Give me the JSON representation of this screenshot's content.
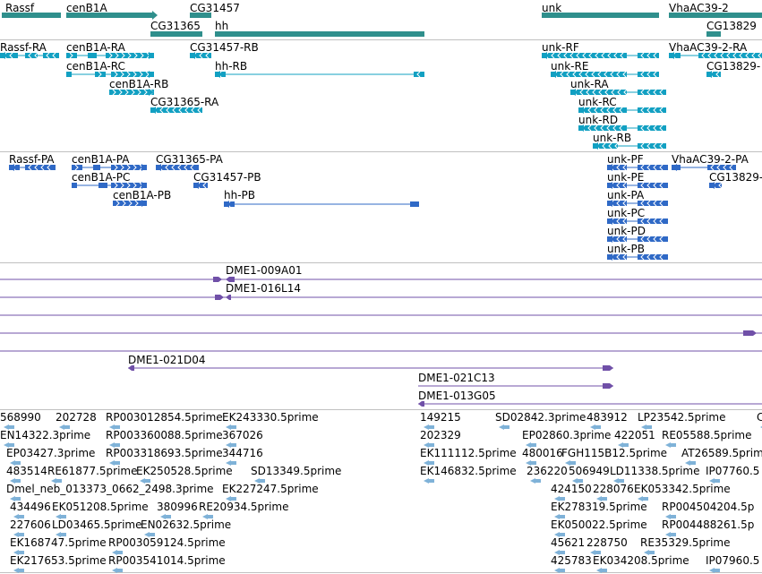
{
  "colors": {
    "gene": "#2f8f8c",
    "transcript": "#12a0c2",
    "protein": "#2f69c6",
    "clone": "#7050a8",
    "est": "#7fb2d8"
  },
  "tracks": {
    "genes": [
      {
        "label": "Rassf",
        "lx": 6,
        "ly": 2,
        "bars": [
          [
            2,
            68
          ]
        ]
      },
      {
        "label": "cenB1A",
        "lx": 74,
        "ly": 2,
        "bars": [
          [
            74,
            170
          ]
        ],
        "arrow": "right"
      },
      {
        "label": "CG31457",
        "lx": 212,
        "ly": 2,
        "bars": [
          [
            212,
            236
          ]
        ]
      },
      {
        "label": "CG31365",
        "lx": 168,
        "ly": 22,
        "bars": [
          [
            168,
            226
          ]
        ],
        "row": 2
      },
      {
        "label": "hh",
        "lx": 240,
        "ly": 22,
        "bars": [
          [
            240,
            474
          ]
        ],
        "row": 2
      },
      {
        "label": "unk",
        "lx": 605,
        "ly": 2,
        "bars": [
          [
            605,
            736
          ]
        ]
      },
      {
        "label": "VhaAC39-2",
        "lx": 747,
        "ly": 2,
        "bars": [
          [
            747,
            851
          ]
        ]
      },
      {
        "label": "CG13829",
        "lx": 789,
        "ly": 22,
        "bars": [
          [
            789,
            805
          ]
        ],
        "row": 2
      }
    ],
    "transcripts": [
      {
        "label": "Rassf-RA",
        "lx": 0,
        "ly": 46,
        "y": 62,
        "x1": 0,
        "x2": 66,
        "dir": "left",
        "blocks": [
          [
            0,
            20
          ],
          [
            28,
            42
          ],
          [
            48,
            66
          ]
        ]
      },
      {
        "label": "cenB1A-RA",
        "lx": 74,
        "ly": 46,
        "y": 62,
        "x1": 74,
        "x2": 172,
        "dir": "right",
        "blocks": [
          [
            74,
            86
          ],
          [
            98,
            108
          ],
          [
            118,
            172
          ]
        ]
      },
      {
        "label": "CG31457-RB",
        "lx": 212,
        "ly": 46,
        "y": 62,
        "x1": 212,
        "x2": 236,
        "dir": "left",
        "blocks": [
          [
            212,
            236
          ]
        ]
      },
      {
        "label": "cenB1A-RC",
        "lx": 74,
        "ly": 67,
        "y": 83,
        "x1": 74,
        "x2": 172,
        "dir": "right",
        "blocks": [
          [
            74,
            80
          ],
          [
            106,
            118
          ],
          [
            124,
            172
          ]
        ]
      },
      {
        "label": "hh-RB",
        "lx": 240,
        "ly": 67,
        "y": 83,
        "x1": 240,
        "x2": 474,
        "dir": "left",
        "blocks": [
          [
            240,
            252
          ],
          [
            462,
            474
          ]
        ]
      },
      {
        "label": "cenB1A-RB",
        "lx": 122,
        "ly": 87,
        "y": 103,
        "x1": 122,
        "x2": 172,
        "dir": "right",
        "blocks": [
          [
            122,
            172
          ]
        ]
      },
      {
        "label": "CG31365-RA",
        "lx": 168,
        "ly": 107,
        "y": 123,
        "x1": 168,
        "x2": 226,
        "dir": "left",
        "blocks": [
          [
            168,
            226
          ]
        ]
      },
      {
        "label": "unk-RF",
        "lx": 605,
        "ly": 46,
        "y": 62,
        "x1": 605,
        "x2": 736,
        "dir": "left",
        "blocks": [
          [
            605,
            700
          ],
          [
            712,
            736
          ]
        ]
      },
      {
        "label": "VhaAC39-2-RA",
        "lx": 747,
        "ly": 46,
        "y": 62,
        "x1": 747,
        "x2": 851,
        "dir": "left",
        "blocks": [
          [
            747,
            760
          ],
          [
            780,
            851
          ]
        ]
      },
      {
        "label": "unk-RE",
        "lx": 615,
        "ly": 67,
        "y": 83,
        "x1": 615,
        "x2": 736,
        "dir": "left",
        "blocks": [
          [
            615,
            700
          ],
          [
            712,
            736
          ]
        ]
      },
      {
        "label": "CG13829-",
        "lx": 789,
        "ly": 67,
        "y": 83,
        "x1": 789,
        "x2": 805,
        "dir": "left",
        "blocks": [
          [
            789,
            805
          ]
        ]
      },
      {
        "label": "unk-RA",
        "lx": 637,
        "ly": 87,
        "y": 103,
        "x1": 637,
        "x2": 744,
        "dir": "left",
        "blocks": [
          [
            637,
            700
          ],
          [
            712,
            744
          ]
        ]
      },
      {
        "label": "unk-RC",
        "lx": 646,
        "ly": 107,
        "y": 123,
        "x1": 646,
        "x2": 744,
        "dir": "left",
        "blocks": [
          [
            646,
            700
          ],
          [
            712,
            744
          ]
        ]
      },
      {
        "label": "unk-RD",
        "lx": 646,
        "ly": 127,
        "y": 143,
        "x1": 646,
        "x2": 744,
        "dir": "left",
        "blocks": [
          [
            646,
            700
          ],
          [
            712,
            744
          ]
        ]
      },
      {
        "label": "unk-RB",
        "lx": 662,
        "ly": 147,
        "y": 163,
        "x1": 662,
        "x2": 744,
        "dir": "left",
        "blocks": [
          [
            662,
            690
          ],
          [
            712,
            744
          ]
        ]
      }
    ],
    "proteins": [
      {
        "label": "Rassf-PA",
        "lx": 10,
        "ly": 171,
        "y": 187,
        "x1": 10,
        "x2": 62,
        "dir": "left",
        "blocks": [
          [
            10,
            22
          ],
          [
            28,
            62
          ]
        ]
      },
      {
        "label": "cenB1A-PA",
        "lx": 80,
        "ly": 171,
        "y": 187,
        "x1": 80,
        "x2": 164,
        "dir": "right",
        "blocks": [
          [
            80,
            92
          ],
          [
            104,
            112
          ],
          [
            124,
            164
          ]
        ]
      },
      {
        "label": "CG31365-PA",
        "lx": 174,
        "ly": 171,
        "y": 187,
        "x1": 174,
        "x2": 222,
        "dir": "left",
        "blocks": [
          [
            174,
            222
          ]
        ]
      },
      {
        "label": "cenB1A-PC",
        "lx": 80,
        "ly": 191,
        "y": 207,
        "x1": 80,
        "x2": 164,
        "dir": "right",
        "blocks": [
          [
            80,
            86
          ],
          [
            110,
            120
          ],
          [
            124,
            164
          ]
        ]
      },
      {
        "label": "CG31457-PB",
        "lx": 216,
        "ly": 191,
        "y": 207,
        "x1": 216,
        "x2": 232,
        "dir": "left",
        "blocks": [
          [
            216,
            232
          ]
        ]
      },
      {
        "label": "cenB1A-PB",
        "lx": 126,
        "ly": 211,
        "y": 227,
        "x1": 126,
        "x2": 164,
        "dir": "right",
        "blocks": [
          [
            126,
            164
          ]
        ]
      },
      {
        "label": "hh-PB",
        "lx": 250,
        "ly": 211,
        "y": 228,
        "x1": 250,
        "x2": 468,
        "dir": "left",
        "blocks": [
          [
            250,
            262
          ],
          [
            458,
            468
          ]
        ]
      },
      {
        "label": "unk-PF",
        "lx": 678,
        "ly": 171,
        "y": 187,
        "x1": 678,
        "x2": 746,
        "dir": "left",
        "blocks": [
          [
            678,
            700
          ],
          [
            712,
            746
          ]
        ]
      },
      {
        "label": "VhaAC39-2-PA",
        "lx": 750,
        "ly": 171,
        "y": 187,
        "x1": 750,
        "x2": 822,
        "dir": "left",
        "blocks": [
          [
            750,
            760
          ],
          [
            790,
            822
          ]
        ]
      },
      {
        "label": "unk-PE",
        "lx": 678,
        "ly": 191,
        "y": 207,
        "x1": 678,
        "x2": 746,
        "dir": "left",
        "blocks": [
          [
            678,
            700
          ],
          [
            712,
            746
          ]
        ]
      },
      {
        "label": "CG13829-",
        "lx": 792,
        "ly": 191,
        "y": 207,
        "x1": 792,
        "x2": 806,
        "dir": "left",
        "blocks": [
          [
            792,
            806
          ]
        ]
      },
      {
        "label": "unk-PA",
        "lx": 678,
        "ly": 211,
        "y": 227,
        "x1": 678,
        "x2": 746,
        "dir": "left",
        "blocks": [
          [
            678,
            700
          ],
          [
            712,
            746
          ]
        ]
      },
      {
        "label": "unk-PC",
        "lx": 678,
        "ly": 231,
        "y": 247,
        "x1": 678,
        "x2": 746,
        "dir": "left",
        "blocks": [
          [
            678,
            700
          ],
          [
            712,
            746
          ]
        ]
      },
      {
        "label": "unk-PD",
        "lx": 678,
        "ly": 251,
        "y": 267,
        "x1": 678,
        "x2": 746,
        "dir": "left",
        "blocks": [
          [
            678,
            700
          ],
          [
            712,
            746
          ]
        ]
      },
      {
        "label": "unk-PB",
        "lx": 678,
        "ly": 271,
        "y": 287,
        "x1": 678,
        "x2": 746,
        "dir": "left",
        "blocks": [
          [
            678,
            700
          ],
          [
            712,
            746
          ]
        ]
      }
    ],
    "clones": [
      {
        "label": "DME1-009A01",
        "lx": 252,
        "ly": 295,
        "y": 312,
        "x1": 0,
        "x2": 851,
        "marks": [
          [
            238,
            248,
            "right"
          ],
          [
            252,
            262,
            "left"
          ]
        ]
      },
      {
        "label": "DME1-016L14",
        "lx": 252,
        "ly": 315,
        "y": 332,
        "x1": 0,
        "x2": 851,
        "marks": [
          [
            240,
            250,
            "right"
          ],
          [
            252,
            258,
            "left"
          ]
        ]
      },
      {
        "label": "",
        "y": 352,
        "x1": 0,
        "x2": 851,
        "marks": []
      },
      {
        "label": "",
        "y": 372,
        "x1": 0,
        "x2": 851,
        "marks": [
          [
            830,
            845,
            "right"
          ]
        ]
      },
      {
        "label": "",
        "y": 392,
        "x1": 0,
        "x2": 851,
        "marks": []
      },
      {
        "label": "DME1-021D04",
        "lx": 143,
        "ly": 395,
        "y": 411,
        "x1": 143,
        "x2": 685,
        "marks": [
          [
            143,
            150,
            "left"
          ],
          [
            673,
            685,
            "right"
          ]
        ]
      },
      {
        "label": "DME1-021C13",
        "lx": 467,
        "ly": 415,
        "y": 431,
        "x1": 467,
        "x2": 685,
        "marks": [
          [
            673,
            685,
            "right"
          ]
        ]
      },
      {
        "label": "DME1-013G05",
        "lx": 467,
        "ly": 435,
        "y": 451,
        "x1": 467,
        "x2": 851,
        "marks": [
          [
            467,
            474,
            "left"
          ]
        ]
      }
    ],
    "ests": [
      {
        "label": "568990",
        "x": 0,
        "y": 459
      },
      {
        "label": "202728",
        "x": 62,
        "y": 459
      },
      {
        "label": "RP003012854.5prime",
        "x": 118,
        "y": 459
      },
      {
        "label": "EK243330.5prime",
        "x": 248,
        "y": 459
      },
      {
        "label": "EN14322.3prime",
        "x": 0,
        "y": 479
      },
      {
        "label": "RP003360088.5prime",
        "x": 118,
        "y": 479
      },
      {
        "label": "367026",
        "x": 248,
        "y": 479
      },
      {
        "label": "EP03427.3prime",
        "x": 7,
        "y": 499
      },
      {
        "label": "RP003318693.5prime",
        "x": 118,
        "y": 499
      },
      {
        "label": "344716",
        "x": 248,
        "y": 499
      },
      {
        "label": "483514",
        "x": 7,
        "y": 519
      },
      {
        "label": "RE61877.5prime",
        "x": 53,
        "y": 519
      },
      {
        "label": "EK250528.5prime",
        "x": 152,
        "y": 519
      },
      {
        "label": "SD13349.5prime",
        "x": 280,
        "y": 519
      },
      {
        "label": "Dmel_neb_013373_0662_2498.3prime",
        "x": 7,
        "y": 539
      },
      {
        "label": "EK227247.5prime",
        "x": 248,
        "y": 539
      },
      {
        "label": "434496",
        "x": 11,
        "y": 559
      },
      {
        "label": "EK051208.5prime",
        "x": 58,
        "y": 559
      },
      {
        "label": "380996",
        "x": 175,
        "y": 559
      },
      {
        "label": "RE20934.5prime",
        "x": 222,
        "y": 559
      },
      {
        "label": "227606",
        "x": 11,
        "y": 579
      },
      {
        "label": "LD03465.5prime",
        "x": 58,
        "y": 579
      },
      {
        "label": "EN02632.5prime",
        "x": 157,
        "y": 579
      },
      {
        "label": "EK168747.5prime",
        "x": 11,
        "y": 599
      },
      {
        "label": "RP003059124.5prime",
        "x": 121,
        "y": 599
      },
      {
        "label": "EK217653.5prime",
        "x": 11,
        "y": 619
      },
      {
        "label": "RP003541014.5prime",
        "x": 121,
        "y": 619
      },
      {
        "label": "149215",
        "x": 469,
        "y": 459
      },
      {
        "label": "SD02842.3prime",
        "x": 553,
        "y": 459
      },
      {
        "label": "483912",
        "x": 655,
        "y": 459
      },
      {
        "label": "LP23542.5prime",
        "x": 712,
        "y": 459
      },
      {
        "label": "C",
        "x": 845,
        "y": 459
      },
      {
        "label": "202329",
        "x": 469,
        "y": 479
      },
      {
        "label": "EP02860.3prime",
        "x": 583,
        "y": 479
      },
      {
        "label": "422051",
        "x": 686,
        "y": 479
      },
      {
        "label": "RE05588.5prime",
        "x": 739,
        "y": 479
      },
      {
        "label": "EK111112.5prime",
        "x": 469,
        "y": 499
      },
      {
        "label": "480016",
        "x": 583,
        "y": 499
      },
      {
        "label": "FGH115B12.5prime",
        "x": 627,
        "y": 499
      },
      {
        "label": "AT26589.5prim",
        "x": 761,
        "y": 499
      },
      {
        "label": "EK146832.5prime",
        "x": 469,
        "y": 519
      },
      {
        "label": "236220",
        "x": 588,
        "y": 519
      },
      {
        "label": "506949",
        "x": 635,
        "y": 519
      },
      {
        "label": "LD11338.5prime",
        "x": 681,
        "y": 519
      },
      {
        "label": "IP07760.5",
        "x": 788,
        "y": 519
      },
      {
        "label": "424150",
        "x": 615,
        "y": 539
      },
      {
        "label": "228076",
        "x": 662,
        "y": 539
      },
      {
        "label": "EK053342.5prime",
        "x": 708,
        "y": 539
      },
      {
        "label": "EK278319.5prime",
        "x": 615,
        "y": 559
      },
      {
        "label": "RP004504204.5p",
        "x": 739,
        "y": 559
      },
      {
        "label": "EK050022.5prime",
        "x": 615,
        "y": 579
      },
      {
        "label": "RP004488261.5p",
        "x": 739,
        "y": 579
      },
      {
        "label": "45621",
        "x": 615,
        "y": 599
      },
      {
        "label": "228750",
        "x": 655,
        "y": 599
      },
      {
        "label": "RE35329.5prime",
        "x": 715,
        "y": 599
      },
      {
        "label": "425783",
        "x": 615,
        "y": 619
      },
      {
        "label": "EK034208.5prime",
        "x": 662,
        "y": 619
      },
      {
        "label": "IP07960.5",
        "x": 788,
        "y": 619
      }
    ]
  }
}
